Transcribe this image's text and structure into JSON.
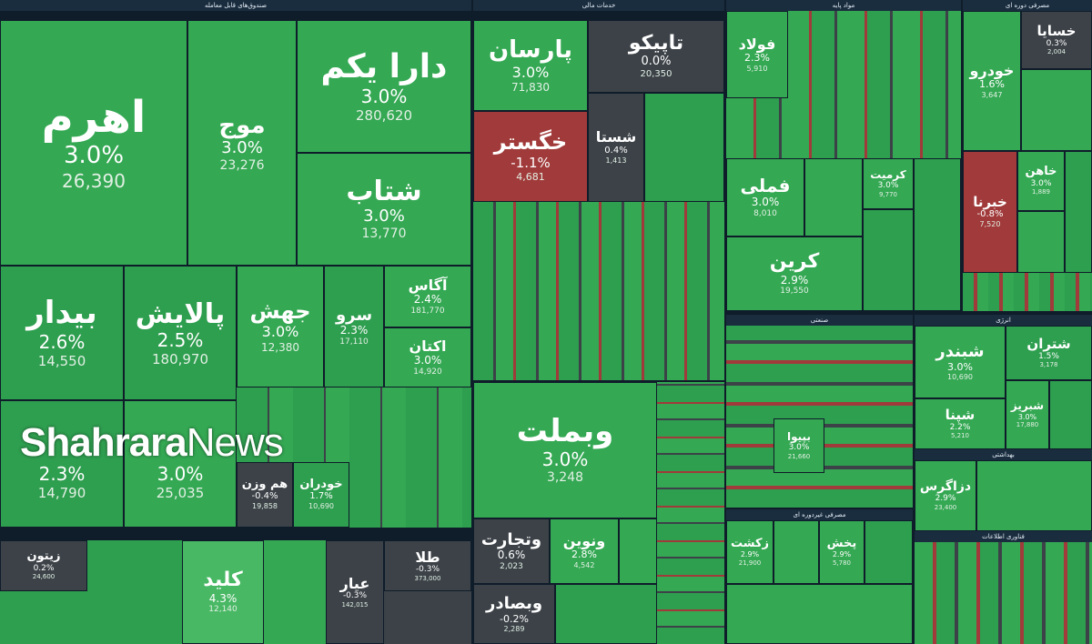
{
  "sectors": [
    {
      "id": "s0",
      "label": "صندوق‌های قابل معامله"
    },
    {
      "id": "s1",
      "label": "خدمات مالی"
    },
    {
      "id": "s2",
      "label": "مواد پایه"
    },
    {
      "id": "s3",
      "label": "مصرفی دوره ای"
    },
    {
      "id": "s4",
      "label": "صنعتی"
    },
    {
      "id": "s5",
      "label": "انرژی"
    },
    {
      "id": "s6",
      "label": "بهداشتی"
    },
    {
      "id": "s7",
      "label": "مصرفی غیردوره ای"
    },
    {
      "id": "s8",
      "label": "فناوری اطلاعات"
    }
  ],
  "tiles": [
    {
      "name": "اهرم",
      "pct": "3.0%",
      "val": "26,390"
    },
    {
      "name": "موج",
      "pct": "3.0%",
      "val": "23,276"
    },
    {
      "name": "دارا یکم",
      "pct": "3.0%",
      "val": "280,620"
    },
    {
      "name": "شتاب",
      "pct": "3.0%",
      "val": "13,770"
    },
    {
      "name": "بیدار",
      "pct": "2.6%",
      "val": "14,550"
    },
    {
      "name": "پالایش",
      "pct": "2.5%",
      "val": "180,970"
    },
    {
      "name": "جهش",
      "pct": "3.0%",
      "val": "12,380"
    },
    {
      "name": "سرو",
      "pct": "2.3%",
      "val": "17,110"
    },
    {
      "name": "آگاس",
      "pct": "2.4%",
      "val": "181,770"
    },
    {
      "name": "اکتان",
      "pct": "3.0%",
      "val": "14,920"
    },
    {
      "name": "",
      "pct": "2.3%",
      "val": "14,790"
    },
    {
      "name": "",
      "pct": "3.0%",
      "val": "25,035"
    },
    {
      "name": "هم وزن",
      "pct": "-0.4%",
      "val": "19,858"
    },
    {
      "name": "خودران",
      "pct": "1.7%",
      "val": "10,690"
    },
    {
      "name": "پارسان",
      "pct": "3.0%",
      "val": "71,830"
    },
    {
      "name": "تاپیکو",
      "pct": "0.0%",
      "val": "20,350"
    },
    {
      "name": "خگستر",
      "pct": "-1.1%",
      "val": "4,681"
    },
    {
      "name": "شستا",
      "pct": "0.4%",
      "val": "1,413"
    },
    {
      "name": "وبملت",
      "pct": "3.0%",
      "val": "3,248"
    },
    {
      "name": "وتجارت",
      "pct": "0.6%",
      "val": "2,023"
    },
    {
      "name": "ونوین",
      "pct": "2.8%",
      "val": "4,542"
    },
    {
      "name": "وبصادر",
      "pct": "-0.2%",
      "val": "2,289"
    },
    {
      "name": "فولاد",
      "pct": "2.3%",
      "val": "5,910"
    },
    {
      "name": "فملی",
      "pct": "3.0%",
      "val": "8,010"
    },
    {
      "name": "کرمیت",
      "pct": "3.0%",
      "val": "9,770"
    },
    {
      "name": "کرین",
      "pct": "2.9%",
      "val": "19,550"
    },
    {
      "name": "خسایا",
      "pct": "0.3%",
      "val": "2,004"
    },
    {
      "name": "خودرو",
      "pct": "1.6%",
      "val": "3,647"
    },
    {
      "name": "خبرنا",
      "pct": "-0.8%",
      "val": "7,520"
    },
    {
      "name": "خاهن",
      "pct": "3.0%",
      "val": "1,889"
    },
    {
      "name": "شبندر",
      "pct": "3.0%",
      "val": "10,690"
    },
    {
      "name": "شتران",
      "pct": "1.5%",
      "val": "3,178"
    },
    {
      "name": "شپنا",
      "pct": "2.2%",
      "val": "5,210"
    },
    {
      "name": "شبریز",
      "pct": "3.0%",
      "val": "17,880"
    },
    {
      "name": "دزاگرس",
      "pct": "2.9%",
      "val": "23,400"
    },
    {
      "name": "زیتون",
      "pct": "0.2%",
      "val": "24,600"
    },
    {
      "name": "کلید",
      "pct": "4.3%",
      "val": "12,140"
    },
    {
      "name": "طلا",
      "pct": "-0.3%",
      "val": "373,000"
    },
    {
      "name": "عیار",
      "pct": "-0.3%",
      "val": "142,015"
    },
    {
      "name": "زکشت",
      "pct": "2.9%",
      "val": "21,900"
    },
    {
      "name": "پخش",
      "pct": "2.9%",
      "val": "5,780"
    },
    {
      "name": "بپیوا",
      "pct": "3.0%",
      "val": "21,660"
    }
  ],
  "colors": {
    "green": "#34a853",
    "red": "#a13a3a",
    "neutral": "#3c4248",
    "header": "#1a2d3f",
    "background": "#0f1c2a"
  },
  "watermark": {
    "bold": "Shahrara",
    "regular": "News"
  }
}
